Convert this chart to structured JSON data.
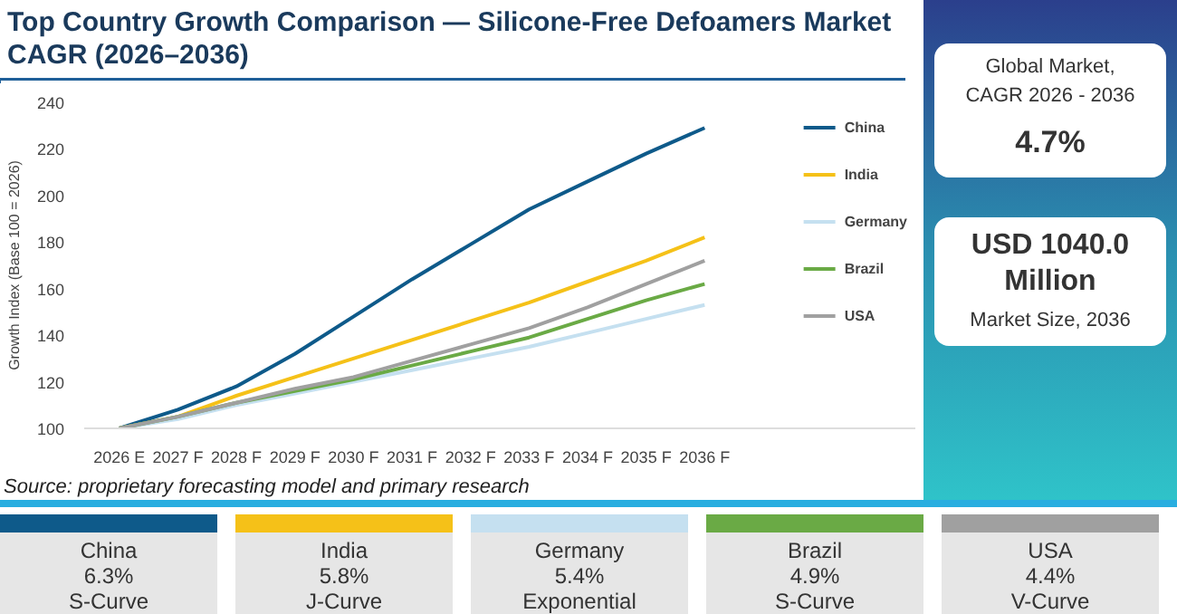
{
  "chart_data": [
    {
      "type": "line",
      "title": "Top Country Growth Comparison — Silicone-Free Defoamers Market CAGR (2026–2036)",
      "ylabel": "Growth Index (Base 100 = 2026)",
      "categories": [
        "2026 E",
        "2027 F",
        "2028 F",
        "2029 F",
        "2030 F",
        "2031 F",
        "2032 F",
        "2033 F",
        "2034 F",
        "2035 F",
        "2036 F"
      ],
      "series": [
        {
          "name": "China",
          "color": "#0e5a8a",
          "values": [
            100,
            108,
            118,
            132,
            148,
            164,
            179,
            194,
            206,
            218,
            229
          ]
        },
        {
          "name": "India",
          "color": "#f5c118",
          "values": [
            100,
            105,
            114,
            122,
            130,
            138,
            146,
            154,
            163,
            172,
            182
          ]
        },
        {
          "name": "Germany",
          "color": "#c5e0f0",
          "values": [
            100,
            104,
            110,
            115,
            120,
            125,
            130,
            135,
            141,
            147,
            153
          ]
        },
        {
          "name": "Brazil",
          "color": "#6aaa45",
          "values": [
            100,
            105,
            111,
            116,
            121,
            127,
            133,
            139,
            147,
            155,
            162
          ]
        },
        {
          "name": "USA",
          "color": "#a0a0a0",
          "values": [
            100,
            105,
            111,
            117,
            122,
            129,
            136,
            143,
            152,
            162,
            172
          ]
        }
      ],
      "ylim": [
        100,
        240
      ],
      "yticks": [
        100,
        120,
        140,
        160,
        180,
        200,
        220,
        240
      ],
      "grid": false,
      "legend": "right",
      "annotations": [
        "Source: proprietary forecasting model and primary research"
      ]
    },
    {
      "type": "other",
      "annotations": [
        "Global Market,\nCAGR 2026 - 2036",
        "4.7%",
        "USD 1040.0\nMillion",
        "Market Size, 2036"
      ]
    },
    {
      "type": "other",
      "categories": [
        "China",
        "India",
        "Germany",
        "Brazil",
        "USA"
      ],
      "value_labels": [
        "6.3%",
        "5.8%",
        "5.4%",
        "4.9%",
        "4.4%"
      ],
      "annotations": [
        "S-Curve",
        "J-Curve",
        "Exponential",
        "S-Curve",
        "V-Curve"
      ]
    }
  ]
}
